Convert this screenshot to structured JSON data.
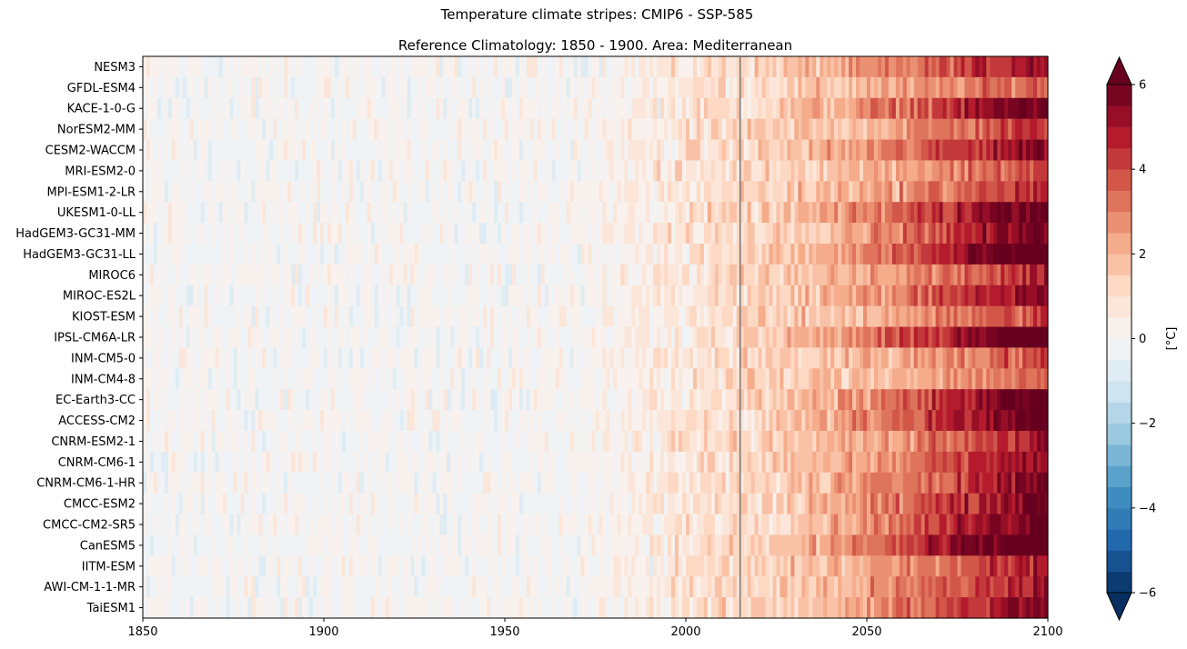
{
  "chart_data": {
    "type": "heatmap",
    "suptitle": "Temperature climate stripes: CMIP6 - SSP-585",
    "title": "Reference Climatology: 1850 - 1900. Area: Mediterranean",
    "x_ticks": [
      1850,
      1900,
      1950,
      2000,
      2050,
      2100
    ],
    "xlim": [
      1850,
      2100
    ],
    "vertical_line_x": 2015,
    "models": [
      "NESM3",
      "GFDL-ESM4",
      "KACE-1-0-G",
      "NorESM2-MM",
      "CESM2-WACCM",
      "MRI-ESM2-0",
      "MPI-ESM1-2-LR",
      "UKESM1-0-LL",
      "HadGEM3-GC31-MM",
      "HadGEM3-GC31-LL",
      "MIROC6",
      "MIROC-ES2L",
      "KIOST-ESM",
      "IPSL-CM6A-LR",
      "INM-CM5-0",
      "INM-CM4-8",
      "EC-Earth3-CC",
      "ACCESS-CM2",
      "CNRM-ESM2-1",
      "CNRM-CM6-1",
      "CNRM-CM6-1-HR",
      "CMCC-ESM2",
      "CMCC-CM2-SR5",
      "CanESM5",
      "IITM-ESM",
      "AWI-CM-1-1-MR",
      "TaiESM1"
    ],
    "anomaly_2100": [
      5.6,
      3.9,
      6.5,
      4.6,
      6.0,
      4.2,
      4.8,
      7.0,
      6.3,
      7.2,
      4.7,
      5.8,
      4.3,
      7.5,
      4.1,
      3.6,
      6.8,
      6.9,
      5.2,
      5.6,
      6.0,
      6.4,
      6.6,
      7.8,
      4.9,
      5.3,
      5.9
    ],
    "colorbar": {
      "label": "[°C]",
      "min": -6,
      "max": 6,
      "ticks": [
        -6,
        -4,
        -2,
        0,
        2,
        4,
        6
      ],
      "tick_labels": [
        "−6",
        "−4",
        "−2",
        "0",
        "2",
        "4",
        "6"
      ],
      "levels": 24,
      "colormap": "RdBu_r"
    }
  }
}
